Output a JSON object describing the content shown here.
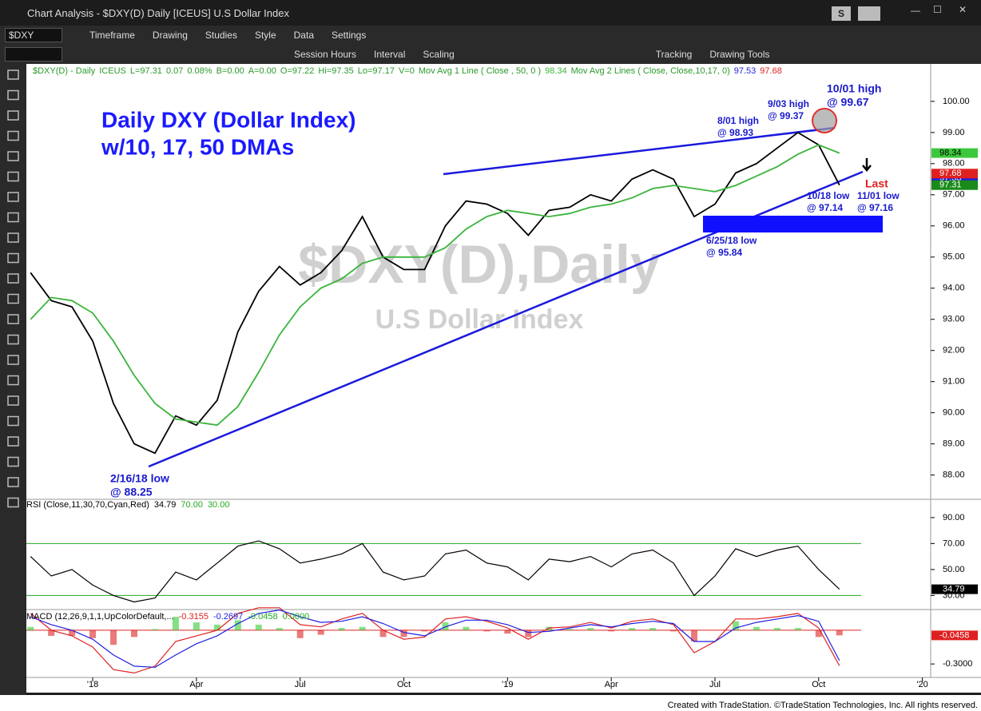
{
  "window": {
    "title": "Chart Analysis - $DXY(D) Daily [ICEUS] U.S Dollar Index",
    "button": "S"
  },
  "toolbar1": [
    "$DXY",
    "Timeframe",
    "Drawing",
    "Studies",
    "Style",
    "Data",
    "Settings"
  ],
  "toolbar2": [
    "Session Hours",
    "Interval",
    "Scaling",
    "Tracking",
    "Drawing Tools"
  ],
  "chart_data": [
    {
      "type": "line",
      "title": "Daily DXY (Dollar Index)",
      "subtitle": "w/10, 17, 50 DMAs",
      "watermark": [
        "$DXY(D),Daily",
        "U.S Dollar Index"
      ],
      "legend": [
        "ICEUS",
        "L=97.31",
        "0.07",
        "0.08%",
        "B=0.00",
        "A=0.00",
        "O=97.22",
        "Hi=97.35",
        "Lo=97.17",
        "V=0"
      ],
      "x": [
        2017.85,
        2017.9,
        2017.95,
        2018,
        2018.05,
        2018.1,
        2018.15,
        2018.2,
        2018.25,
        2018.3,
        2018.35,
        2018.4,
        2018.45,
        2018.5,
        2018.55,
        2018.6,
        2018.65,
        2018.7,
        2018.75,
        2018.8,
        2018.85,
        2018.9,
        2018.95,
        2019,
        2019.05,
        2019.1,
        2019.15,
        2019.2,
        2019.25,
        2019.3,
        2019.35,
        2019.4,
        2019.45,
        2019.5,
        2019.55,
        2019.6,
        2019.65,
        2019.7,
        2019.75,
        2019.8
      ],
      "series": [
        {
          "name": "$DXY(D) - Daily",
          "color": "#000000",
          "values": [
            94.5,
            93.6,
            93.4,
            92.3,
            90.3,
            89.0,
            88.7,
            89.9,
            89.6,
            90.4,
            92.6,
            93.9,
            94.7,
            94.1,
            94.5,
            95.2,
            96.3,
            95.0,
            94.6,
            94.6,
            96.0,
            96.8,
            96.7,
            96.4,
            95.7,
            96.5,
            96.6,
            97.0,
            96.8,
            97.5,
            97.8,
            97.5,
            96.3,
            96.7,
            97.7,
            98.0,
            98.5,
            99.0,
            98.6,
            97.31
          ]
        },
        {
          "name": "Mov Avg 1 Line (  Close , 50,  0 )",
          "color": "#3cb43c",
          "values": [
            93.0,
            93.7,
            93.6,
            93.2,
            92.3,
            91.2,
            90.3,
            89.8,
            89.7,
            89.6,
            90.2,
            91.3,
            92.5,
            93.4,
            94.0,
            94.3,
            94.8,
            95.0,
            95.0,
            95.0,
            95.3,
            95.9,
            96.3,
            96.5,
            96.4,
            96.3,
            96.4,
            96.6,
            96.7,
            96.9,
            97.2,
            97.3,
            97.2,
            97.1,
            97.3,
            97.6,
            97.9,
            98.3,
            98.6,
            98.34
          ]
        }
      ],
      "ma2": {
        "name": "Mov Avg 2 Lines ( Close, Close,10,17, 0)",
        "values": [
          97.53,
          97.68
        ],
        "colors": [
          "#1f1fe0",
          "#e02020"
        ]
      },
      "xlim": [
        2017.84,
        2020.02
      ],
      "xticks": [
        {
          "value": 2018,
          "label": "'18"
        },
        {
          "value": 2018.25,
          "label": "Apr"
        },
        {
          "value": 2018.5,
          "label": "Jul"
        },
        {
          "value": 2018.75,
          "label": "Oct"
        },
        {
          "value": 2019,
          "label": "'19"
        },
        {
          "value": 2019.25,
          "label": "Apr"
        },
        {
          "value": 2019.5,
          "label": "Jul"
        },
        {
          "value": 2019.75,
          "label": "Oct"
        },
        {
          "value": 2020,
          "label": "'20"
        }
      ],
      "ylim": [
        87.4,
        101.1
      ],
      "yticks": [
        {
          "value": 88,
          "label": "88.00"
        },
        {
          "value": 89,
          "label": "89.00"
        },
        {
          "value": 90,
          "label": "90.00"
        },
        {
          "value": 91,
          "label": "91.00"
        },
        {
          "value": 92,
          "label": "92.00"
        },
        {
          "value": 93,
          "label": "93.00"
        },
        {
          "value": 94,
          "label": "94.00"
        },
        {
          "value": 95,
          "label": "95.00"
        },
        {
          "value": 96,
          "label": "96.00"
        },
        {
          "value": 97,
          "label": "97.00"
        },
        {
          "value": 98,
          "label": "98.00"
        },
        {
          "value": 99,
          "label": "99.00"
        },
        {
          "value": 100,
          "label": "100.00"
        }
      ]
    },
    {
      "type": "line",
      "title": "RSI (Close,11,30,70,Cyan,Red)",
      "series": [
        {
          "name": "RSI",
          "color": "#000000",
          "values": [
            60,
            45,
            50,
            38,
            30,
            25,
            28,
            48,
            42,
            55,
            68,
            72,
            66,
            55,
            58,
            62,
            70,
            48,
            42,
            45,
            62,
            65,
            55,
            52,
            42,
            58,
            56,
            60,
            52,
            62,
            65,
            55,
            30,
            45,
            66,
            60,
            65,
            68,
            50,
            34.79
          ]
        }
      ],
      "levels": [
        {
          "value": 70,
          "label": "70.00"
        },
        {
          "value": 30,
          "label": "30.00"
        }
      ],
      "level_color": "#22aa22",
      "ylim": [
        21,
        101
      ],
      "yticks": [
        {
          "value": 30,
          "label": "30.00"
        },
        {
          "value": 50,
          "label": "50.00"
        },
        {
          "value": 70,
          "label": "70.00"
        },
        {
          "value": 90,
          "label": "90.00"
        }
      ]
    },
    {
      "type": "line",
      "title": "MACD (12,26,9,1,1,UpColorDefault,...",
      "series": [
        {
          "name": "MACD",
          "color": "#e02020",
          "values": [
            0.15,
            0.0,
            -0.05,
            -0.15,
            -0.35,
            -0.38,
            -0.32,
            -0.1,
            -0.05,
            0.0,
            0.15,
            0.2,
            0.2,
            0.05,
            0.03,
            0.1,
            0.15,
            0.0,
            -0.08,
            -0.06,
            0.1,
            0.12,
            0.08,
            0.02,
            -0.08,
            0.02,
            0.03,
            0.07,
            0.02,
            0.08,
            0.1,
            0.05,
            -0.2,
            -0.1,
            0.1,
            0.1,
            0.12,
            0.15,
            0.02,
            -0.3155
          ]
        },
        {
          "name": "MACDAvg",
          "color": "#1f1fe0",
          "values": [
            0.12,
            0.05,
            0.0,
            -0.08,
            -0.22,
            -0.32,
            -0.33,
            -0.22,
            -0.12,
            -0.05,
            0.06,
            0.15,
            0.18,
            0.12,
            0.07,
            0.08,
            0.12,
            0.06,
            -0.02,
            -0.05,
            0.03,
            0.09,
            0.09,
            0.05,
            -0.02,
            -0.01,
            0.02,
            0.05,
            0.03,
            0.06,
            0.08,
            0.06,
            -0.1,
            -0.1,
            0.02,
            0.07,
            0.1,
            0.13,
            0.08,
            -0.2697
          ]
        }
      ],
      "hist": {
        "up_color": "#33cc33",
        "down_color": "#dd2222",
        "values": [
          0.03,
          -0.05,
          -0.05,
          -0.07,
          -0.13,
          -0.06,
          0.01,
          0.12,
          0.07,
          0.05,
          0.09,
          0.05,
          0.02,
          -0.07,
          -0.04,
          0.02,
          0.03,
          -0.06,
          -0.06,
          -0.01,
          0.07,
          0.03,
          -0.01,
          -0.03,
          -0.06,
          0.03,
          0.01,
          0.02,
          -0.01,
          0.02,
          0.02,
          -0.01,
          -0.1,
          0,
          0.08,
          0.03,
          0.02,
          0.02,
          -0.06,
          -0.0458
        ]
      },
      "zero": {
        "value": 0,
        "label": "0.0000"
      },
      "ylim": [
        -0.42,
        0.17
      ],
      "yticks": [
        {
          "value": -0.3,
          "label": "-0.3000"
        }
      ]
    }
  ],
  "annotations": [
    [
      "10/01 high",
      "@ 99.67"
    ],
    [
      "9/03 high",
      "@ 99.37"
    ],
    [
      "8/01 high",
      "@ 98.93"
    ],
    [
      "10/18 low",
      "@ 97.14"
    ],
    [
      "11/01 low",
      "@ 97.16"
    ],
    [
      "6/25/18 low",
      "@ 95.84"
    ],
    [
      "2/16/18 low",
      "@ 88.25"
    ],
    [
      "Last"
    ]
  ],
  "footer": "Created with TradeStation. ©TradeStation Technologies, Inc. All rights reserved."
}
